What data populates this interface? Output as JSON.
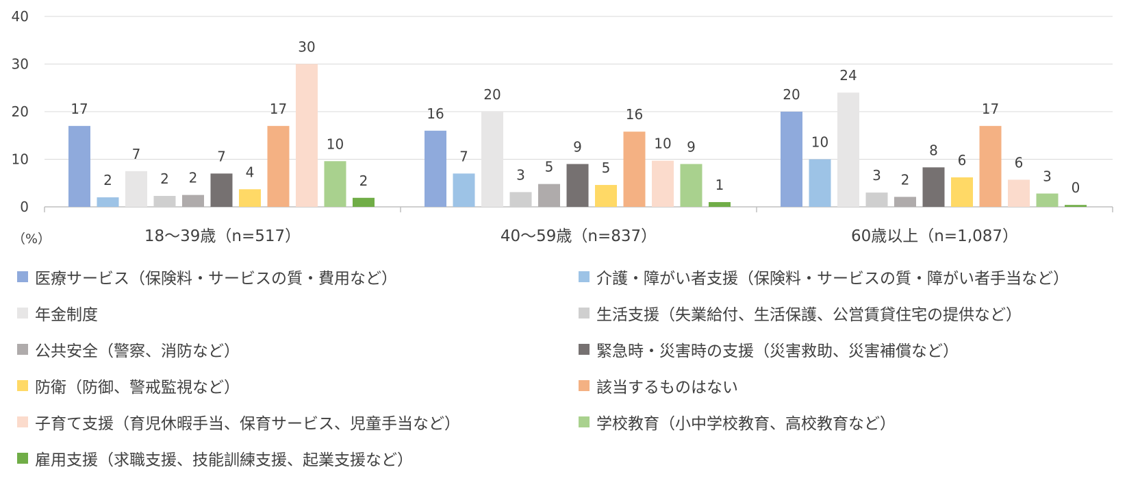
{
  "chart_data": {
    "type": "bar",
    "unit_label": "（%）",
    "categories": [
      "18〜39歳（n=517）",
      "40〜59歳（n=837）",
      "60歳以上（n=1,087）"
    ],
    "ylim": [
      0,
      40
    ],
    "yticks": [
      0,
      10,
      20,
      30,
      40
    ],
    "grid": true,
    "legend_position": "bottom",
    "series": [
      {
        "name": "医療サービス（保険料・サービスの質・費用など）",
        "color": "#8faadc",
        "values": [
          17,
          16,
          20
        ],
        "labels": [
          "17",
          "16",
          "20"
        ]
      },
      {
        "name": "介護・障がい者支援（保険料・サービスの質・障がい者手当など）",
        "color": "#9dc3e6",
        "values": [
          2,
          7,
          10
        ],
        "labels": [
          "2",
          "7",
          "10"
        ]
      },
      {
        "name": "年金制度",
        "color": "#e7e6e6",
        "values": [
          7.5,
          20,
          24
        ],
        "labels": [
          "7",
          "20",
          "24"
        ]
      },
      {
        "name": "生活支援（失業給付、生活保護、公営賃貸住宅の提供など）",
        "color": "#cfcfcf",
        "values": [
          2.3,
          3.1,
          3
        ],
        "labels": [
          "2",
          "3",
          "3"
        ]
      },
      {
        "name": "公共安全（警察、消防など）",
        "color": "#afabab",
        "values": [
          2.5,
          4.8,
          2.1
        ],
        "labels": [
          "2",
          "5",
          "2"
        ]
      },
      {
        "name": "緊急時・災害時の支援（災害救助、災害補償など）",
        "color": "#767171",
        "values": [
          7,
          9,
          8.3
        ],
        "labels": [
          "7",
          "9",
          "8"
        ]
      },
      {
        "name": "防衛（防御、警戒監視など）",
        "color": "#ffd966",
        "values": [
          3.7,
          4.6,
          6.2
        ],
        "labels": [
          "4",
          "5",
          "6"
        ]
      },
      {
        "name": "該当するものはない",
        "color": "#f4b183",
        "values": [
          17,
          15.8,
          17
        ],
        "labels": [
          "17",
          "16",
          "17"
        ]
      },
      {
        "name": "子育て支援（育児休暇手当、保育サービス、児童手当など）",
        "color": "#fbdbcc",
        "values": [
          30,
          9.7,
          5.7
        ],
        "labels": [
          "30",
          "10",
          "6"
        ]
      },
      {
        "name": "学校教育（小中学校教育、高校教育など）",
        "color": "#a9d18e",
        "values": [
          9.6,
          9,
          2.8
        ],
        "labels": [
          "10",
          "9",
          "3"
        ]
      },
      {
        "name": "雇用支援（求職支援、技能訓練支援、起業支援など）",
        "color": "#70ad47",
        "values": [
          1.9,
          1,
          0.4
        ],
        "labels": [
          "2",
          "1",
          "0"
        ]
      }
    ]
  }
}
